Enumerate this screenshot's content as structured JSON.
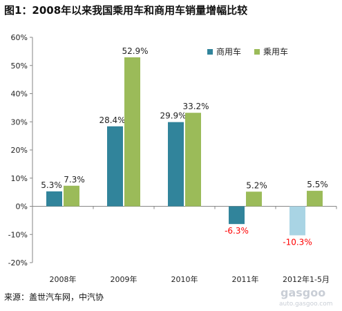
{
  "chart_data": {
    "type": "bar",
    "title": "图1：2008年以来我国乘用车和商用车销量增幅比较",
    "categories": [
      "2008年",
      "2009年",
      "2010年",
      "2011年",
      "2012年1-5月"
    ],
    "series": [
      {
        "name": "商用车",
        "values": [
          5.3,
          28.4,
          29.9,
          -6.3,
          -10.3
        ],
        "color": "#31849b",
        "labels": [
          "5.3%",
          "28.4%",
          "29.9%",
          "-6.3%",
          "-10.3%"
        ]
      },
      {
        "name": "乘用车",
        "values": [
          7.3,
          52.9,
          33.2,
          5.2,
          5.5
        ],
        "color": "#9bbb59",
        "labels": [
          "7.3%",
          "52.9%",
          "33.2%",
          "5.2%",
          "5.5%"
        ]
      }
    ],
    "last_commercial_color": "#a9d4e4",
    "negative_label_color": "#ff0000",
    "ylim": [
      -20,
      60
    ],
    "yticks": [
      -20,
      -10,
      0,
      10,
      20,
      30,
      40,
      50,
      60
    ],
    "ytick_labels": [
      "-20%",
      "-10%",
      "0%",
      "10%",
      "20%",
      "30%",
      "40%",
      "50%",
      "60%"
    ],
    "legend_position": "top-right",
    "grid": false,
    "xlabel": "",
    "ylabel": ""
  },
  "source_text": "来源：盖世汽车网，中汽协",
  "watermark": {
    "logo": "gasgoo",
    "url": "auto.gasgoo.com"
  }
}
